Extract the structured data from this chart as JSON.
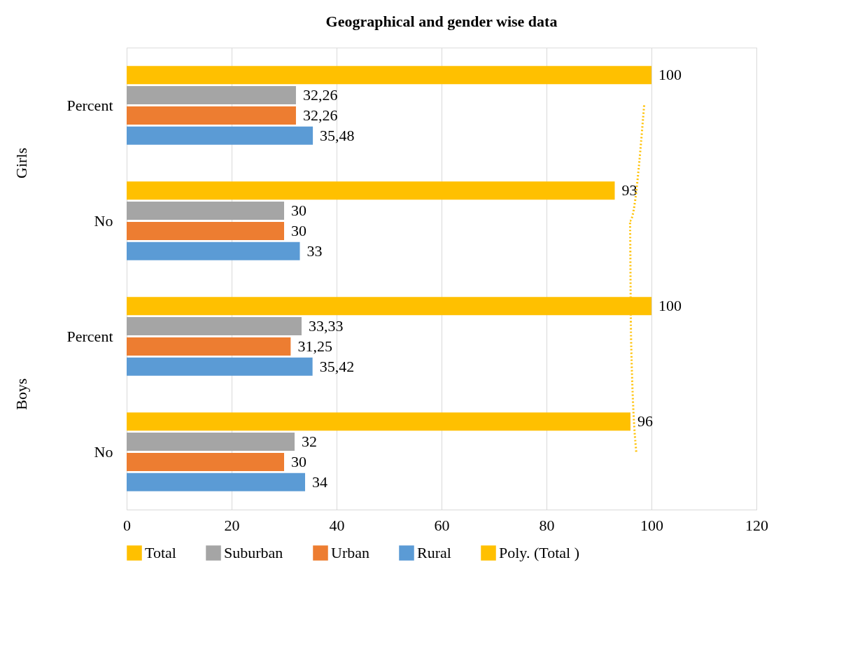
{
  "chart_data": {
    "type": "bar",
    "orientation": "horizontal",
    "title": "Geographical and gender wise data",
    "categories": [
      "Percent",
      "No",
      "Percent",
      "No"
    ],
    "annotations": [
      "Girls",
      "Boys"
    ],
    "series": [
      {
        "name": "Total",
        "color": "#ffc000",
        "values": [
          100,
          93,
          100,
          96
        ],
        "value_labels": [
          "100",
          "93",
          "100",
          "96"
        ]
      },
      {
        "name": "Suburban",
        "color": "#a5a5a5",
        "values": [
          32.26,
          30,
          33.33,
          32
        ],
        "value_labels": [
          "32,26",
          "30",
          "33,33",
          "32"
        ]
      },
      {
        "name": "Urban",
        "color": "#ed7d31",
        "values": [
          32.26,
          30,
          31.25,
          30
        ],
        "value_labels": [
          "32,26",
          "30",
          "31,25",
          "30"
        ]
      },
      {
        "name": "Rural",
        "color": "#5b9bd5",
        "values": [
          35.48,
          33,
          35.42,
          34
        ],
        "value_labels": [
          "35,48",
          "33",
          "35,42",
          "34"
        ]
      },
      {
        "name": "Poly. (Total )",
        "color": "#ffc000",
        "type": "line",
        "line_style": "dotted",
        "values": [
          98.6,
          95.9,
          96.1,
          97.1
        ]
      }
    ],
    "xlim": [
      0,
      120
    ],
    "xticks": [
      0,
      20,
      40,
      60,
      80,
      100,
      120
    ],
    "grid": "x",
    "legend": "bottom"
  }
}
